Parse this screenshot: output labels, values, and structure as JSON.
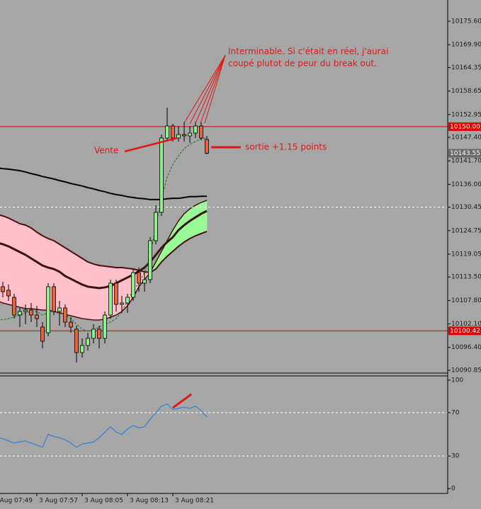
{
  "chart_data": [
    {
      "type": "candlestick",
      "categories": [
        "3 Aug 07:49",
        null,
        null,
        null,
        null,
        null,
        null,
        null,
        "3 Aug 07:57",
        null,
        null,
        null,
        null,
        null,
        null,
        null,
        "3 Aug 08:05",
        null,
        null,
        null,
        null,
        null,
        null,
        null,
        "3 Aug 08:13",
        null,
        null,
        null,
        null,
        null,
        null,
        null,
        "3 Aug 08:21",
        null,
        null,
        null,
        null,
        null,
        null
      ],
      "open": [
        null,
        null,
        10111.14,
        10110.28,
        10108.56,
        10104.26,
        10105.12,
        10105.46,
        10104.26,
        10101.34,
        10099.96,
        10111.14,
        10105.12,
        10105.98,
        10102.54,
        10100.82,
        10095.15,
        10096.87,
        10098.59,
        10100.82,
        10098.59,
        10104.26,
        10112.0,
        10106.84,
        10107.18,
        10108.56,
        10114.57,
        10112.0,
        10112.86,
        10122.31,
        10129.19,
        10147.24,
        10150.16,
        10147.24,
        10148.1,
        10147.75,
        10148.44,
        10150.16,
        10146.89
      ],
      "high": [
        null,
        null,
        10112.34,
        10111.65,
        10109.42,
        10105.98,
        10106.84,
        10107.18,
        10106.49,
        10102.54,
        10112.0,
        10112.0,
        10107.7,
        10106.84,
        10103.74,
        10101.68,
        10098.59,
        10099.96,
        10102.02,
        10101.68,
        10105.12,
        10112.86,
        10112.86,
        10108.9,
        10109.42,
        10115.43,
        10115.78,
        10114.57,
        10123.17,
        10130.91,
        10148.1,
        10154.63,
        10150.68,
        10150.16,
        10151.19,
        10150.16,
        10151.19,
        10151.02,
        10147.75
      ],
      "low": [
        null,
        null,
        10108.56,
        10107.7,
        10103.4,
        10101.34,
        10102.02,
        10102.54,
        10101.34,
        10096.18,
        10099.1,
        10104.26,
        10101.68,
        10101.34,
        10099.96,
        10092.74,
        10093.95,
        10095.66,
        10097.38,
        10096.18,
        10097.38,
        10103.4,
        10105.12,
        10104.78,
        10104.78,
        10107.7,
        10109.93,
        10109.93,
        10112.0,
        10121.45,
        10128.33,
        10146.38,
        10146.38,
        10146.38,
        10146.38,
        10146.03,
        10147.24,
        10146.72,
        10143.28
      ],
      "close": [
        null,
        null,
        10109.93,
        10108.9,
        10104.26,
        10105.12,
        10105.46,
        10104.26,
        10103.4,
        10097.9,
        10111.14,
        10105.12,
        10105.98,
        10102.54,
        10101.34,
        10095.15,
        10096.87,
        10098.59,
        10100.82,
        10098.59,
        10104.26,
        10112.0,
        10106.84,
        10107.18,
        10108.56,
        10114.57,
        10112.0,
        10112.86,
        10122.31,
        10129.19,
        10147.24,
        10150.16,
        10147.24,
        10148.1,
        10147.75,
        10148.44,
        10150.16,
        10147.24,
        10143.55
      ],
      "up_color": "#90ee90",
      "down_color": "#e8643c",
      "ylim": [
        10090.16,
        10180.76
      ],
      "yticks": [
        {
          "value": 10175.6,
          "label": "10175.60"
        },
        {
          "value": 10169.9,
          "label": "10169.90"
        },
        10164.35,
        10158.65,
        10152.95,
        {
          "value": 10147.4,
          "label": "10147.40"
        },
        {
          "value": 10141.7,
          "label": "10141.70"
        },
        {
          "value": 10136,
          "label": "10136.00"
        },
        10130.45,
        10124.75,
        10119.05,
        {
          "value": 10113.5,
          "label": "10113.50"
        },
        {
          "value": 10107.8,
          "label": "10107.80"
        },
        {
          "value": 10102.1,
          "label": "10102.10"
        },
        {
          "value": 10096.4,
          "label": "10096.40"
        },
        10090.85
      ],
      "hlines": [
        {
          "value": 10150,
          "label": "10150.00",
          "color": "#e00000"
        },
        {
          "value": 10100.42,
          "label": "10100.42",
          "color": "#e00000"
        },
        {
          "value": 10130.45,
          "color": "#ffffff",
          "dashed": true
        }
      ],
      "price_tag": {
        "value": 10143.55,
        "label": "10143.55",
        "color": "#6a6a6a"
      },
      "cloud": {
        "colors": [
          "#ffc0cb",
          "#98fb98"
        ],
        "edge_color": "#4a1010",
        "a": [
          null,
          10128.67,
          10128.33,
          10127.81,
          10127.12,
          10126.44,
          10126.09,
          10125.41,
          10124.37,
          10123.51,
          10122.83,
          10122.31,
          10121.45,
          10120.59,
          10119.73,
          10118.87,
          10118.01,
          10117.15,
          10116.64,
          10116.29,
          10116.12,
          10115.95,
          10115.78,
          10115.78,
          10115.61,
          10115.43,
          10115.09,
          10114.75,
          10114.57,
          10115.43,
          10117.15,
          10118.53,
          10119.73,
          10120.94,
          10121.97,
          10122.83,
          10123.51,
          10124.03,
          10124.55
        ],
        "b": [
          null,
          10107.7,
          10107.18,
          10106.84,
          10106.49,
          10106.15,
          10105.81,
          10105.81,
          10105.64,
          10105.46,
          10105.46,
          10105.12,
          10104.78,
          10104.43,
          10104.09,
          10103.74,
          10103.4,
          10103.23,
          10103.06,
          10103.06,
          10103.23,
          10103.74,
          10104.26,
          10105.12,
          10106.49,
          10108.56,
          10111.14,
          10112.86,
          10114.57,
          10117.15,
          10119.73,
          10122.31,
          10124.89,
          10127.12,
          10128.85,
          10130.05,
          10130.91,
          10131.59,
          10132.11
        ]
      },
      "series": [
        {
          "color": "#000000",
          "line_width": 2,
          "values": [
            null,
            10140.0,
            10139.8,
            10139.7,
            10139.5,
            10139.3,
            10139.0,
            10138.6,
            10138.3,
            10137.9,
            10137.6,
            10137.3,
            10136.9,
            10136.6,
            10136.2,
            10135.9,
            10135.6,
            10135.2,
            10134.9,
            10134.5,
            10134.2,
            10133.8,
            10133.5,
            10133.3,
            10133.0,
            10132.8,
            10132.6,
            10132.5,
            10132.3,
            10132.3,
            10132.3,
            10132.5,
            10132.6,
            10132.6,
            10132.8,
            10133.0,
            10133.0,
            10133.1,
            10133.1
          ]
        },
        {
          "color": "#3a1414",
          "line_width": 3,
          "values": [
            null,
            10121.8,
            10121.45,
            10120.94,
            10120.25,
            10119.56,
            10118.87,
            10118.01,
            10117.15,
            10116.29,
            10115.78,
            10115.43,
            10114.75,
            10113.72,
            10113.03,
            10112.34,
            10111.65,
            10111.14,
            10110.97,
            10110.8,
            10110.97,
            10111.31,
            10112.0,
            10112.69,
            10113.38,
            10114.06,
            10114.92,
            10115.78,
            10117.15,
            10118.87,
            10120.59,
            10121.97,
            10123.17,
            10124.89,
            10126.09,
            10127.12,
            10127.99,
            10128.85,
            10129.53
          ]
        },
        {
          "color": "#0f7a0f",
          "line_width": 1,
          "dashed": true,
          "values": [
            null,
            10103.4,
            10103.06,
            10103.4,
            10103.74,
            10104.26,
            10104.78,
            10105.12,
            10105.12,
            10104.26,
            10104.78,
            10105.46,
            10105.12,
            10104.26,
            10103.4,
            10102.02,
            10100.82,
            10100.31,
            10100.65,
            10101.34,
            10102.02,
            10102.54,
            10103.4,
            10105.12,
            10107.7,
            10110.28,
            10112.0,
            10114.57,
            10118.87,
            10125.75,
            10132.63,
            10137.78,
            10140.88,
            10142.94,
            10144.66,
            10145.69,
            10146.38,
            10147.07,
            10147.24
          ]
        }
      ]
    },
    {
      "type": "line",
      "ylim": [
        -4.5,
        103.9
      ],
      "yticks": [
        100,
        70,
        30,
        0
      ],
      "levels": [
        70,
        30
      ],
      "series": [
        {
          "color": "#1e78e6",
          "values": [
            null,
            47,
            46,
            44,
            42,
            43,
            44,
            42,
            40,
            38,
            50,
            48,
            47,
            45,
            42,
            38,
            41,
            42,
            43,
            47,
            52,
            57,
            52,
            50,
            55,
            58,
            56,
            57,
            64,
            70,
            76,
            78,
            73,
            74,
            75,
            74,
            76,
            72,
            66
          ]
        }
      ]
    }
  ],
  "annotations": {
    "note": [
      "Interminable. Si c'était en réel, j'aurai",
      "coupé plutot de peur du break out."
    ],
    "vente": "Vente",
    "sortie": "sortie +1.15 points"
  }
}
